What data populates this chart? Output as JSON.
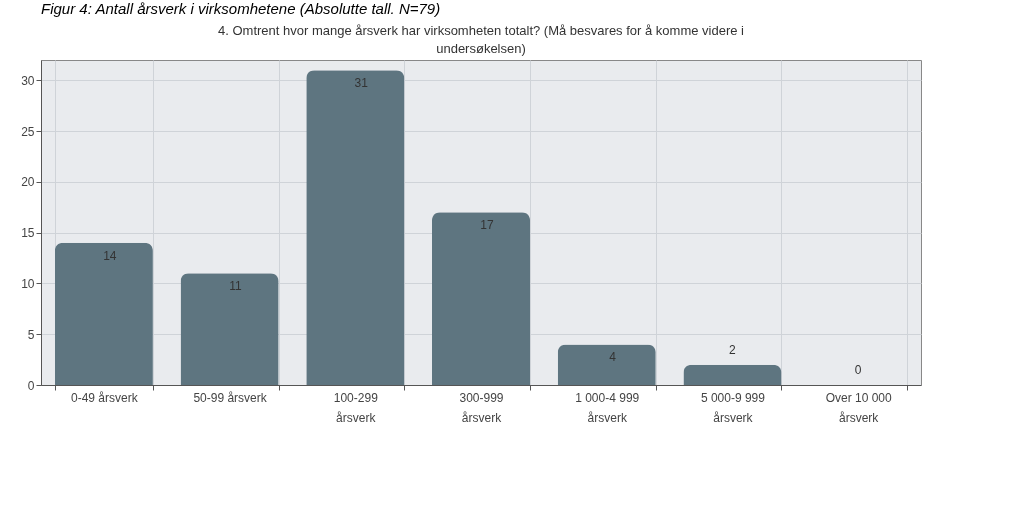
{
  "chart_data": {
    "type": "bar",
    "title": "4. Omtrent hvor mange årsverk har virksomheten totalt? (Må besvares for å komme videre i undersøkelsen)",
    "annotations": [
      "Figur 4: Antall årsverk i virksomhetene (Absolutte tall. N=79)"
    ],
    "categories": [
      "0-49 årsverk",
      "50-99 årsverk",
      "100-299 årsverk",
      "300-999 årsverk",
      "1 000-4 999 årsverk",
      "5 000-9 999 årsverk",
      "Over 10 000 årsverk"
    ],
    "values": [
      14,
      11,
      31,
      17,
      4,
      2,
      0
    ],
    "color": "#5e7580",
    "ylim": [
      0,
      32
    ],
    "yticks": [
      0,
      5,
      10,
      15,
      20,
      25,
      30
    ],
    "grid": true,
    "data_labels": true
  }
}
